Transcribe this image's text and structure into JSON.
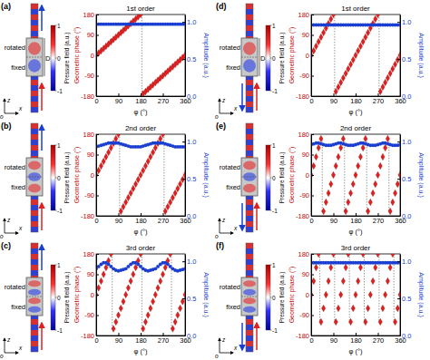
{
  "chart_data": [
    {
      "type": "scatter",
      "panel": "(a)",
      "title": "1st order",
      "xlabel": "φ (°)",
      "ylabel": "Geometric phase (°)",
      "y2label": "Amplitude (a.u.)",
      "x": [
        0,
        10,
        20,
        30,
        40,
        50,
        60,
        70,
        80,
        90,
        100,
        110,
        120,
        130,
        140,
        150,
        160,
        170,
        180,
        190,
        200,
        210,
        220,
        230,
        240,
        250,
        260,
        270,
        280,
        290,
        300,
        310,
        320,
        330,
        340,
        350,
        360
      ],
      "xlim": [
        0,
        360
      ],
      "xticks": [
        0,
        90,
        180,
        270,
        360
      ],
      "ylim": [
        -180,
        180
      ],
      "yticks": [
        -180,
        -90,
        0,
        90,
        180
      ],
      "y2lim": [
        0,
        1.1
      ],
      "y2ticks": [
        {
          "value": 0,
          "label": "0.0"
        },
        {
          "value": 0.5,
          "label": "0.5"
        },
        {
          "value": 1,
          "label": "1.0"
        }
      ],
      "series": [
        {
          "color": "#e02020",
          "marker": "diamond",
          "values": [
            0,
            10,
            20,
            30,
            40,
            50,
            60,
            70,
            80,
            90,
            100,
            110,
            120,
            130,
            140,
            150,
            160,
            170,
            180,
            -170,
            -160,
            -150,
            -140,
            -130,
            -120,
            -110,
            -100,
            -90,
            -80,
            -70,
            -60,
            -50,
            -40,
            -30,
            -20,
            -10,
            0
          ]
        },
        {
          "color": "#1a3fd0",
          "marker": "circle",
          "axis": "y2",
          "values": [
            0.97,
            0.97,
            0.97,
            0.97,
            0.97,
            0.97,
            0.97,
            0.97,
            0.97,
            0.97,
            0.97,
            0.97,
            0.97,
            0.97,
            0.97,
            0.97,
            0.97,
            0.97,
            0.97,
            0.97,
            0.97,
            0.97,
            0.97,
            0.97,
            0.97,
            0.97,
            0.97,
            0.97,
            0.97,
            0.97,
            0.97,
            0.97,
            0.97,
            0.97,
            0.97,
            0.97,
            0.97
          ]
        }
      ],
      "colorbar": {
        "label": "Pressure field (a.u.)",
        "range": [
          -1,
          1
        ],
        "ticks": [
          1,
          0,
          -1
        ]
      },
      "schematic": {
        "rotated": "rotated",
        "fixed": "fixed",
        "size_label": "D",
        "axes": [
          "z",
          "x",
          "o"
        ]
      }
    },
    {
      "type": "scatter",
      "panel": "(b)",
      "title": "2nd order",
      "xlabel": "φ (°)",
      "ylabel": "Geometric phase (°)",
      "y2label": "Amplitude (a.u.)",
      "x": [
        0,
        10,
        20,
        30,
        40,
        50,
        60,
        70,
        80,
        90,
        100,
        110,
        120,
        130,
        140,
        150,
        160,
        170,
        180,
        190,
        200,
        210,
        220,
        230,
        240,
        250,
        260,
        270,
        280,
        290,
        300,
        310,
        320,
        330,
        340,
        350,
        360
      ],
      "xlim": [
        0,
        360
      ],
      "xticks": [
        0,
        90,
        180,
        270,
        360
      ],
      "ylim": [
        -180,
        180
      ],
      "yticks": [
        -180,
        -90,
        0,
        90,
        180
      ],
      "y2lim": [
        0,
        1.1
      ],
      "y2ticks": [
        {
          "value": 0,
          "label": "0.0"
        },
        {
          "value": 0.5,
          "label": "0.5"
        },
        {
          "value": 1,
          "label": "1.0"
        }
      ],
      "series": [
        {
          "color": "#e02020",
          "marker": "diamond",
          "values": [
            0,
            20,
            40,
            60,
            80,
            100,
            120,
            140,
            160,
            180,
            -160,
            -140,
            -120,
            -100,
            -80,
            -60,
            -40,
            -20,
            0,
            20,
            40,
            60,
            80,
            100,
            120,
            140,
            160,
            180,
            -160,
            -140,
            -120,
            -100,
            -80,
            -60,
            -40,
            -20,
            0
          ]
        },
        {
          "color": "#1a3fd0",
          "marker": "circle",
          "axis": "y2",
          "values": [
            0.93,
            0.94,
            0.95,
            0.96,
            0.97,
            0.98,
            0.98,
            0.98,
            0.98,
            0.98,
            0.97,
            0.96,
            0.95,
            0.94,
            0.93,
            0.93,
            0.93,
            0.93,
            0.93,
            0.94,
            0.95,
            0.96,
            0.97,
            0.98,
            0.98,
            0.98,
            0.98,
            0.98,
            0.97,
            0.96,
            0.95,
            0.94,
            0.93,
            0.93,
            0.93,
            0.93,
            0.93
          ]
        }
      ],
      "colorbar": {
        "label": "Pressure field (a.u.)",
        "range": [
          -1,
          1
        ],
        "ticks": [
          1,
          0,
          -1
        ]
      },
      "schematic": {
        "rotated": "rotated",
        "fixed": "fixed",
        "axes": [
          "z",
          "x",
          "o"
        ]
      }
    },
    {
      "type": "scatter",
      "panel": "(c)",
      "title": "3rd order",
      "xlabel": "φ (°)",
      "ylabel": "Geometric phase (°)",
      "y2label": "Amplitude (a.u.)",
      "x": [
        0,
        10,
        20,
        30,
        40,
        50,
        60,
        70,
        80,
        90,
        100,
        110,
        120,
        130,
        140,
        150,
        160,
        170,
        180,
        190,
        200,
        210,
        220,
        230,
        240,
        250,
        260,
        270,
        280,
        290,
        300,
        310,
        320,
        330,
        340,
        350,
        360
      ],
      "xlim": [
        0,
        360
      ],
      "xticks": [
        0,
        90,
        180,
        270,
        360
      ],
      "ylim": [
        -180,
        180
      ],
      "yticks": [
        -180,
        -90,
        0,
        90,
        180
      ],
      "y2lim": [
        0,
        1.1
      ],
      "y2ticks": [
        {
          "value": 0,
          "label": "0.0"
        },
        {
          "value": 0.5,
          "label": "0.5"
        },
        {
          "value": 1,
          "label": "1.0"
        }
      ],
      "series": [
        {
          "color": "#e02020",
          "marker": "diamond",
          "values": [
            0,
            30,
            60,
            90,
            120,
            150,
            180,
            -150,
            -120,
            -90,
            -60,
            -30,
            0,
            30,
            60,
            90,
            120,
            150,
            180,
            -150,
            -120,
            -90,
            -60,
            -30,
            0,
            30,
            60,
            90,
            120,
            150,
            180,
            -150,
            -120,
            -90,
            -60,
            -30,
            0
          ]
        },
        {
          "color": "#1a3fd0",
          "marker": "circle",
          "axis": "y2",
          "values": [
            0.9,
            0.93,
            0.96,
            0.98,
            0.98,
            0.96,
            0.93,
            0.9,
            0.88,
            0.87,
            0.88,
            0.89,
            0.9,
            0.93,
            0.96,
            0.98,
            0.98,
            0.96,
            0.93,
            0.9,
            0.88,
            0.87,
            0.88,
            0.89,
            0.9,
            0.93,
            0.96,
            0.98,
            0.98,
            0.96,
            0.93,
            0.9,
            0.88,
            0.87,
            0.88,
            0.89,
            0.9
          ]
        }
      ],
      "colorbar": {
        "label": "Pressure field (a.u.)",
        "range": [
          -1,
          1
        ],
        "ticks": [
          1,
          0,
          -1
        ]
      },
      "schematic": {
        "rotated": "rotated",
        "fixed": "fixed",
        "axes": [
          "z",
          "x",
          "o"
        ]
      }
    },
    {
      "type": "scatter",
      "panel": "(d)",
      "title": "1st order",
      "xlabel": "φ (°)",
      "ylabel": "Geometric phase (°)",
      "y2label": "Amplitude (a.u.)",
      "x": [
        0,
        10,
        20,
        30,
        40,
        50,
        60,
        70,
        80,
        90,
        100,
        110,
        120,
        130,
        140,
        150,
        160,
        170,
        180,
        190,
        200,
        210,
        220,
        230,
        240,
        250,
        260,
        270,
        280,
        290,
        300,
        310,
        320,
        330,
        340,
        350,
        360
      ],
      "xlim": [
        0,
        360
      ],
      "xticks": [
        0,
        90,
        180,
        270,
        360
      ],
      "ylim": [
        -180,
        180
      ],
      "yticks": [
        -180,
        -90,
        0,
        90,
        180
      ],
      "y2lim": [
        0,
        1.1
      ],
      "y2ticks": [
        {
          "value": 0,
          "label": "0.0"
        },
        {
          "value": 0.5,
          "label": "0.5"
        },
        {
          "value": 1,
          "label": "1.0"
        }
      ],
      "series": [
        {
          "color": "#e02020",
          "marker": "diamond",
          "values": [
            0,
            20,
            40,
            60,
            80,
            100,
            120,
            140,
            160,
            180,
            -160,
            -140,
            -120,
            -100,
            -80,
            -60,
            -40,
            -20,
            0,
            20,
            40,
            60,
            80,
            100,
            120,
            140,
            160,
            180,
            -160,
            -140,
            -120,
            -100,
            -80,
            -60,
            -40,
            -20,
            0
          ]
        },
        {
          "color": "#1a3fd0",
          "marker": "circle",
          "axis": "y2",
          "values": [
            0.96,
            0.96,
            0.96,
            0.96,
            0.96,
            0.96,
            0.96,
            0.96,
            0.96,
            0.96,
            0.96,
            0.96,
            0.96,
            0.96,
            0.96,
            0.96,
            0.96,
            0.96,
            0.96,
            0.96,
            0.96,
            0.96,
            0.96,
            0.96,
            0.96,
            0.96,
            0.96,
            0.96,
            0.96,
            0.96,
            0.96,
            0.96,
            0.96,
            0.96,
            0.96,
            0.96,
            0.96
          ]
        }
      ],
      "colorbar": {
        "label": "Pressure field (a.u.)",
        "range": [
          -1,
          1
        ],
        "ticks": [
          1,
          0,
          -1
        ]
      },
      "schematic": {
        "rotated": "rotated",
        "fixed": "fixed",
        "size_label": "D",
        "axes": [
          "z",
          "x",
          "o"
        ]
      }
    },
    {
      "type": "scatter",
      "panel": "(e)",
      "title": "2nd order",
      "xlabel": "φ (°)",
      "ylabel": "Geometric phase (°)",
      "y2label": "Amplitude (a.u.)",
      "x": [
        0,
        10,
        20,
        30,
        40,
        50,
        60,
        70,
        80,
        90,
        100,
        110,
        120,
        130,
        140,
        150,
        160,
        170,
        180,
        190,
        200,
        210,
        220,
        230,
        240,
        250,
        260,
        270,
        280,
        290,
        300,
        310,
        320,
        330,
        340,
        350,
        360
      ],
      "xlim": [
        0,
        360
      ],
      "xticks": [
        0,
        90,
        180,
        270,
        360
      ],
      "ylim": [
        -180,
        180
      ],
      "yticks": [
        -180,
        -90,
        0,
        90,
        180
      ],
      "y2lim": [
        0,
        1.1
      ],
      "y2ticks": [
        {
          "value": 0,
          "label": "0.0"
        },
        {
          "value": 0.5,
          "label": "0.5"
        },
        {
          "value": 1,
          "label": "1.0"
        }
      ],
      "series": [
        {
          "color": "#e02020",
          "marker": "diamond",
          "values": [
            0,
            40,
            80,
            120,
            160,
            -160,
            -120,
            -80,
            -40,
            0,
            40,
            80,
            120,
            160,
            -160,
            -120,
            -80,
            -40,
            0,
            40,
            80,
            120,
            160,
            -160,
            -120,
            -80,
            -40,
            0,
            40,
            80,
            120,
            160,
            -160,
            -120,
            -80,
            -40,
            0
          ]
        },
        {
          "color": "#1a3fd0",
          "marker": "circle",
          "axis": "y2",
          "values": [
            0.96,
            0.97,
            0.98,
            0.98,
            0.97,
            0.96,
            0.95,
            0.95,
            0.95,
            0.96,
            0.97,
            0.98,
            0.98,
            0.97,
            0.96,
            0.95,
            0.95,
            0.95,
            0.96,
            0.97,
            0.98,
            0.98,
            0.97,
            0.96,
            0.95,
            0.95,
            0.95,
            0.96,
            0.97,
            0.98,
            0.98,
            0.97,
            0.96,
            0.95,
            0.95,
            0.95,
            0.96
          ]
        }
      ],
      "colorbar": {
        "label": "Pressure field (a.u.)",
        "range": [
          -1,
          1
        ],
        "ticks": [
          1,
          0,
          -1
        ]
      },
      "schematic": {
        "rotated": "rotated",
        "fixed": "fixed",
        "axes": [
          "z",
          "x",
          "o"
        ]
      }
    },
    {
      "type": "scatter",
      "panel": "(f)",
      "title": "3rd order",
      "xlabel": "φ (°)",
      "ylabel": "Geometric phase (°)",
      "y2label": "Amplitude (a.u.)",
      "x": [
        0,
        10,
        20,
        30,
        40,
        50,
        60,
        70,
        80,
        90,
        100,
        110,
        120,
        130,
        140,
        150,
        160,
        170,
        180,
        190,
        200,
        210,
        220,
        230,
        240,
        250,
        260,
        270,
        280,
        290,
        300,
        310,
        320,
        330,
        340,
        350,
        360
      ],
      "xlim": [
        0,
        360
      ],
      "xticks": [
        0,
        90,
        180,
        270,
        360
      ],
      "ylim": [
        -180,
        180
      ],
      "yticks": [
        -180,
        -90,
        0,
        90,
        180
      ],
      "y2lim": [
        0,
        1.1
      ],
      "y2ticks": [
        {
          "value": 0,
          "label": "0.0"
        },
        {
          "value": 0.5,
          "label": "0.5"
        },
        {
          "value": 1,
          "label": "1.0"
        }
      ],
      "series": [
        {
          "color": "#e02020",
          "marker": "diamond",
          "values": [
            0,
            60,
            120,
            180,
            -120,
            -60,
            0,
            60,
            120,
            180,
            -120,
            -60,
            0,
            60,
            120,
            180,
            -120,
            -60,
            0,
            60,
            120,
            180,
            -120,
            -60,
            0,
            60,
            120,
            180,
            -120,
            -60,
            0,
            60,
            120,
            180,
            -120,
            -60,
            0
          ]
        },
        {
          "color": "#1a3fd0",
          "marker": "circle",
          "axis": "y2",
          "values": [
            0.98,
            0.98,
            0.98,
            0.98,
            0.98,
            0.98,
            0.98,
            0.98,
            0.98,
            0.98,
            0.98,
            0.98,
            0.98,
            0.98,
            0.98,
            0.98,
            0.98,
            0.98,
            0.98,
            0.98,
            0.98,
            0.98,
            0.98,
            0.98,
            0.98,
            0.98,
            0.98,
            0.98,
            0.98,
            0.98,
            0.98,
            0.98,
            0.98,
            0.98,
            0.98,
            0.98,
            0.98
          ]
        }
      ],
      "colorbar": {
        "label": "Pressure field (a.u.)",
        "range": [
          -1,
          1
        ],
        "ticks": [
          1,
          0,
          -1
        ]
      },
      "schematic": {
        "rotated": "rotated",
        "fixed": "fixed",
        "axes": [
          "z",
          "x",
          "o"
        ]
      }
    }
  ]
}
